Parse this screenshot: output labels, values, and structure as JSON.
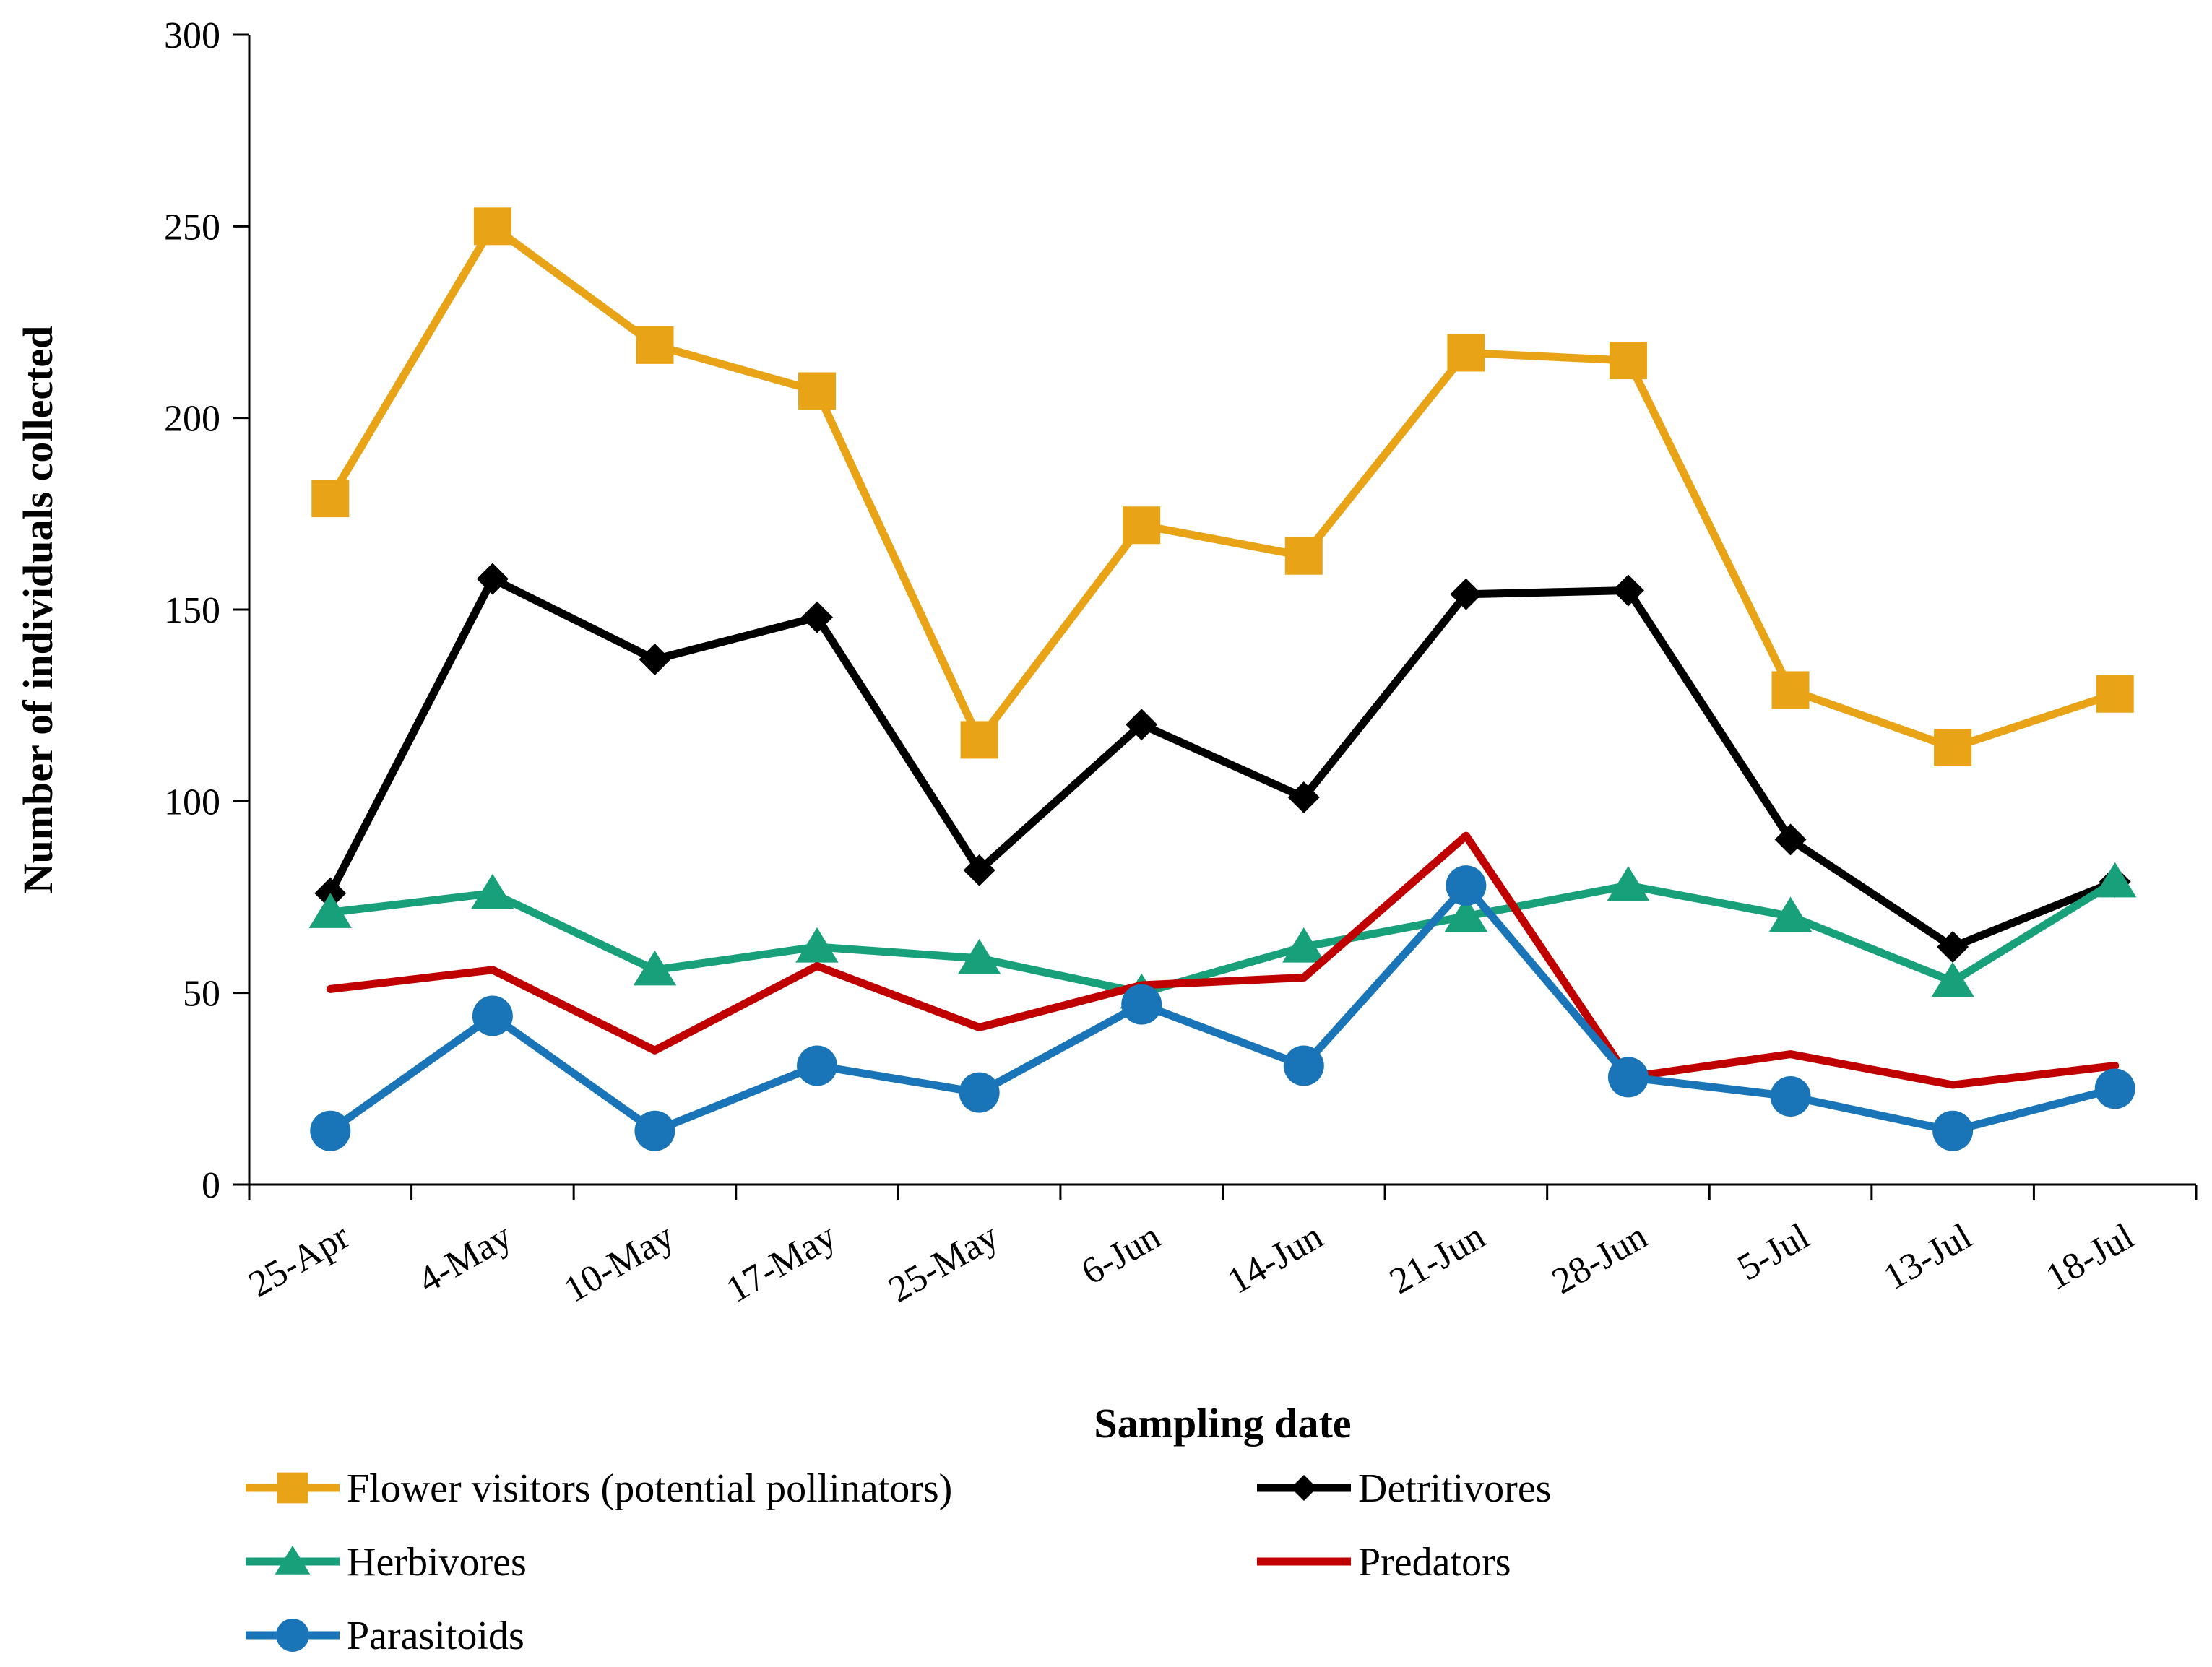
{
  "chart_data": {
    "type": "line",
    "title": "",
    "xlabel": "Sampling date",
    "ylabel": "Number of individuals collected",
    "ylim": [
      0,
      300
    ],
    "yticks": [
      0,
      50,
      100,
      150,
      200,
      250,
      300
    ],
    "grid": false,
    "legend_position": "bottom",
    "categories": [
      "25-Apr",
      "4-May",
      "10-May",
      "17-May",
      "25-May",
      "6-Jun",
      "14-Jun",
      "21-Jun",
      "28-Jun",
      "5-Jul",
      "13-Jul",
      "18-Jul"
    ],
    "series": [
      {
        "name": "Flower visitors (potential pollinators)",
        "color": "#E8A317",
        "marker": "square",
        "values": [
          179,
          250,
          219,
          207,
          116,
          172,
          164,
          217,
          215,
          129,
          114,
          128
        ]
      },
      {
        "name": "Detritivores",
        "color": "#000000",
        "marker": "diamond",
        "values": [
          76,
          158,
          137,
          148,
          82,
          120,
          101,
          154,
          155,
          90,
          62,
          79
        ]
      },
      {
        "name": "Herbivores",
        "color": "#17A07A",
        "marker": "triangle",
        "values": [
          71,
          76,
          56,
          62,
          59,
          50,
          62,
          70,
          78,
          70,
          53,
          79
        ]
      },
      {
        "name": "Predators",
        "color": "#C00000",
        "marker": "none",
        "values": [
          51,
          56,
          35,
          57,
          41,
          52,
          54,
          91,
          28,
          34,
          26,
          31
        ]
      },
      {
        "name": "Parasitoids",
        "color": "#1A75B8",
        "marker": "circle",
        "values": [
          14,
          44,
          14,
          31,
          24,
          47,
          31,
          78,
          28,
          23,
          14,
          25
        ]
      }
    ]
  }
}
